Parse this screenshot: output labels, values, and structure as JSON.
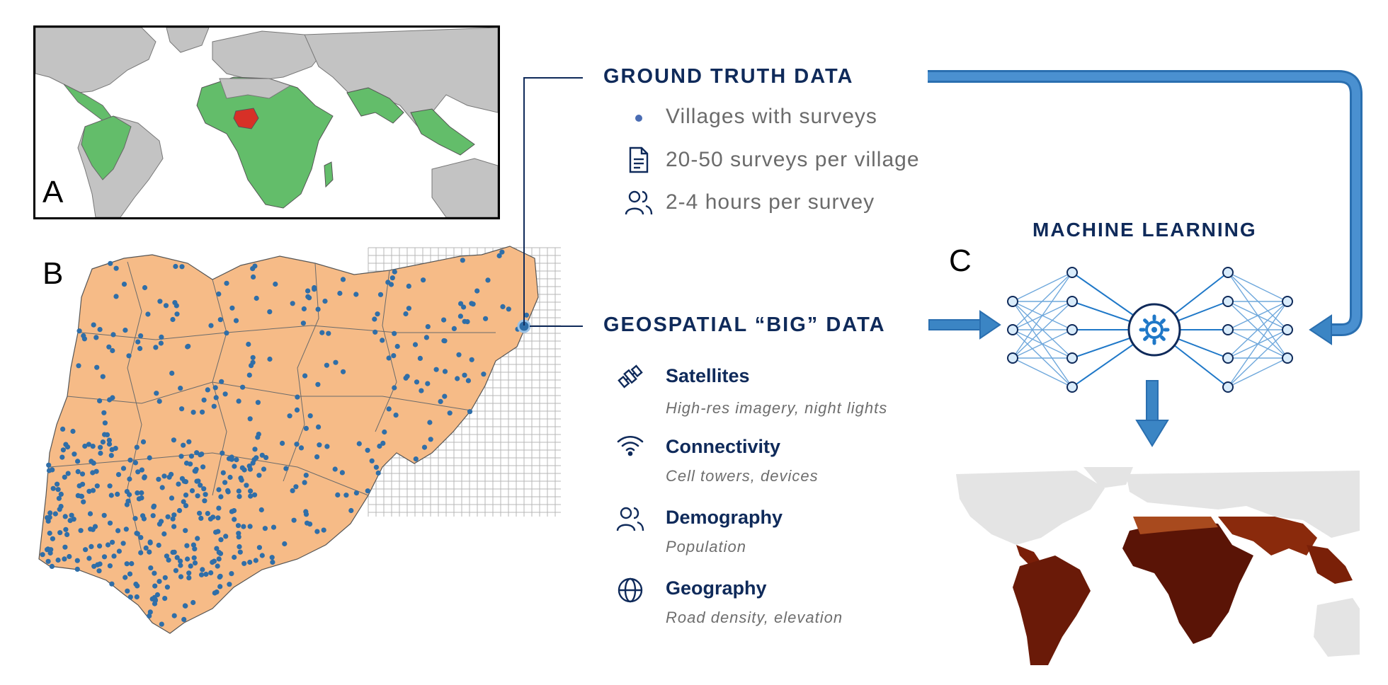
{
  "panels": {
    "a": "A",
    "b": "B",
    "c": "C"
  },
  "ground_truth": {
    "title": "GROUND TRUTH DATA",
    "items": [
      {
        "icon": "dot-icon",
        "label": "Villages with surveys"
      },
      {
        "icon": "document-icon",
        "label": "20-50 surveys per village"
      },
      {
        "icon": "people-icon",
        "label": "2-4 hours per survey"
      }
    ]
  },
  "geospatial": {
    "title": "GEOSPATIAL “BIG” DATA",
    "items": [
      {
        "icon": "satellite-icon",
        "name": "Satellites",
        "desc": "High-res imagery, night lights"
      },
      {
        "icon": "wifi-icon",
        "name": "Connectivity",
        "desc": "Cell towers, devices"
      },
      {
        "icon": "people-icon",
        "name": "Demography",
        "desc": "Population"
      },
      {
        "icon": "globe-icon",
        "name": "Geography",
        "desc": "Road density, elevation"
      }
    ]
  },
  "machine_learning": {
    "title": "MACHINE LEARNING"
  },
  "colors": {
    "navy": "#0f2a5a",
    "arrow_blue": "#3b85c4",
    "network_blue": "#1f78c8",
    "map_green": "#63bd6a",
    "map_red": "#d73027",
    "map_gray": "#c3c3c3",
    "nigeria_orange": "#f6bb87",
    "survey_dot": "#2f6ea8",
    "wealth_dark": "#6a1a08"
  }
}
